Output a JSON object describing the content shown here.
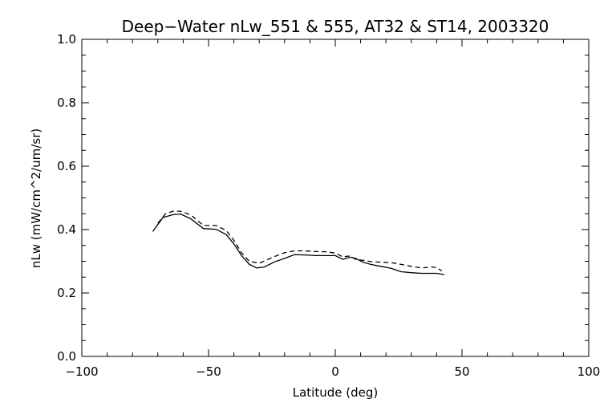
{
  "chart_data": {
    "type": "line",
    "title": "Deep−Water nLw_551 & 555, AT32 & ST14, 2003320",
    "xlabel": "Latitude (deg)",
    "ylabel": "nLw (mW/cm^2/um/sr)",
    "xlim": [
      -100,
      100
    ],
    "ylim": [
      0.0,
      1.0
    ],
    "xticks": [
      -100,
      -50,
      0,
      50,
      100
    ],
    "xtick_labels": [
      "−100",
      "−50",
      "0",
      "50",
      "100"
    ],
    "yticks": [
      0.0,
      0.2,
      0.4,
      0.6,
      0.8,
      1.0
    ],
    "ytick_labels": [
      "0.0",
      "0.2",
      "0.4",
      "0.6",
      "0.8",
      "1.0"
    ],
    "grid": false,
    "series": [
      {
        "style": "solid",
        "color": "#000000",
        "x": [
          -72,
          -68,
          -64,
          -61,
          -57,
          -52,
          -47,
          -43,
          -40,
          -37,
          -34,
          -31,
          -28,
          -24,
          -20,
          -16,
          -12,
          -8,
          -4,
          0,
          3,
          6,
          8,
          11,
          14,
          18,
          22,
          26,
          30,
          34,
          38,
          40,
          43
        ],
        "y": [
          0.394,
          0.438,
          0.447,
          0.449,
          0.434,
          0.403,
          0.401,
          0.384,
          0.355,
          0.318,
          0.291,
          0.279,
          0.282,
          0.298,
          0.309,
          0.321,
          0.32,
          0.318,
          0.318,
          0.318,
          0.306,
          0.313,
          0.309,
          0.297,
          0.29,
          0.284,
          0.278,
          0.267,
          0.264,
          0.262,
          0.262,
          0.262,
          0.258
        ]
      },
      {
        "style": "dashed",
        "color": "#000000",
        "x": [
          -70,
          -67,
          -64,
          -61,
          -57,
          -52,
          -47,
          -43,
          -40,
          -37,
          -34,
          -30,
          -27,
          -24,
          -20,
          -16,
          -12,
          -8,
          -4,
          0,
          3,
          6,
          8,
          11,
          14,
          18,
          22,
          26,
          30,
          34,
          38,
          40,
          42
        ],
        "y": [
          0.42,
          0.45,
          0.458,
          0.458,
          0.446,
          0.413,
          0.413,
          0.397,
          0.366,
          0.327,
          0.3,
          0.294,
          0.304,
          0.315,
          0.327,
          0.333,
          0.333,
          0.331,
          0.33,
          0.326,
          0.314,
          0.317,
          0.306,
          0.303,
          0.299,
          0.297,
          0.296,
          0.29,
          0.284,
          0.279,
          0.282,
          0.28,
          0.27
        ]
      }
    ]
  }
}
